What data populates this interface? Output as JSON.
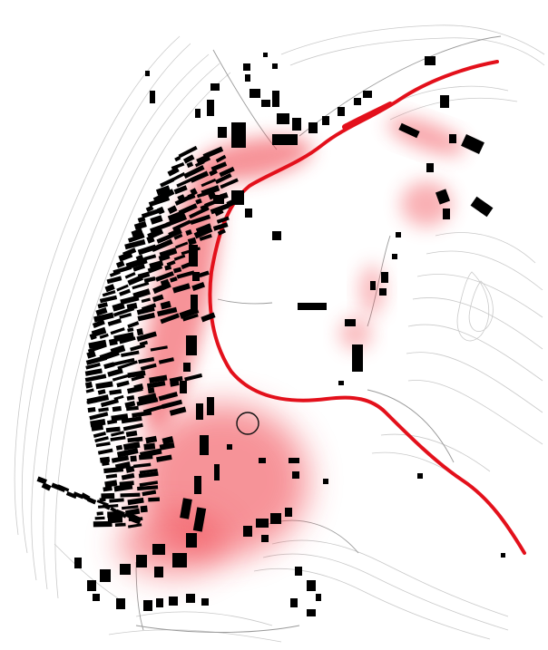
{
  "map": {
    "style": "figure-ground settlement plan with contour lines",
    "colors": {
      "background": "#ffffff",
      "buildings": "#000000",
      "contours": "#c9c9c9",
      "road_primary": "#e3101b",
      "heat_overlay": "#f03a44",
      "road_edge": "#9a9a9a"
    },
    "icons": [
      "roundabout-circle-icon"
    ],
    "text": []
  }
}
